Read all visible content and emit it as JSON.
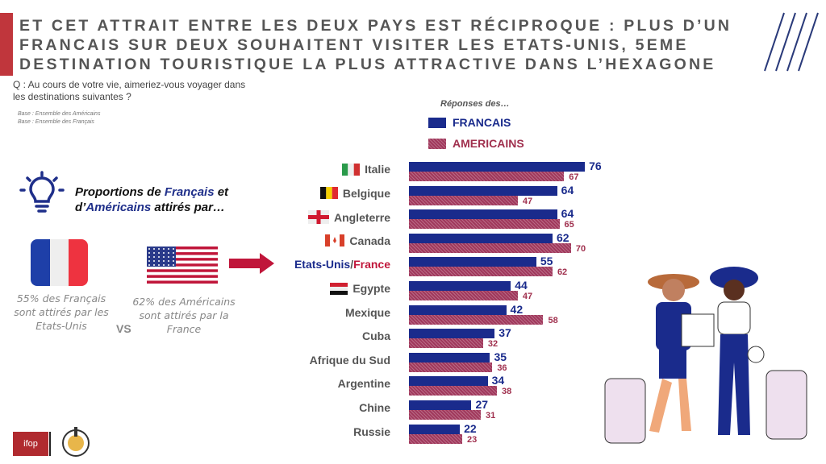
{
  "header": {
    "title": "ET CET ATTRAIT ENTRE LES DEUX PAYS EST RÉCIPROQUE : PLUS D’UN FRANCAIS SUR DEUX SOUHAITENT VISITER LES ETATS-UNIS, 5EME DESTINATION TOURISTIQUE LA PLUS ATTRACTIVE DANS L’HEXAGONE"
  },
  "question": "Q : Au cours de votre vie, aimeriez-vous voyager dans les destinations suivantes ?",
  "bases": [
    "Base : Ensemble des Américains",
    "Base : Ensemble des Français"
  ],
  "callout": {
    "p1": "Proportions de ",
    "fr": "Français",
    "p2": " et",
    "p3": "d’",
    "us": "Américains",
    "p4": " attirés par…"
  },
  "fr_caption": "55% des Français sont attirés par les Etats-Unis",
  "us_caption": "62% des Américains sont attirés par la France",
  "vs": "VS",
  "logos": {
    "ifop": "ifop"
  },
  "colors": {
    "francais": "#1a2b8c",
    "americains": "#a0385c",
    "accent": "#c0363c"
  },
  "chart_data": {
    "type": "bar",
    "orientation": "horizontal",
    "legend_title": "Réponses des…",
    "categories": [
      "Italie",
      "Belgique",
      "Angleterre",
      "Canada",
      "Etats-Unis/France",
      "Egypte",
      "Mexique",
      "Cuba",
      "Afrique du Sud",
      "Argentine",
      "Chine",
      "Russie"
    ],
    "special_label": {
      "fr": "Etats-Unis",
      "sep": "/",
      "us": "France"
    },
    "flags": [
      "italy-flag",
      "belgium-flag",
      "england-flag",
      "canada-flag",
      "",
      "egypt-flag",
      "",
      "",
      "",
      "",
      "",
      ""
    ],
    "series": [
      {
        "name": "FRANCAIS",
        "values": [
          76,
          64,
          64,
          62,
          55,
          44,
          42,
          37,
          35,
          34,
          27,
          22
        ]
      },
      {
        "name": "AMERICAINS",
        "values": [
          67,
          47,
          65,
          70,
          62,
          47,
          58,
          32,
          36,
          38,
          31,
          23
        ]
      }
    ],
    "xlim": [
      0,
      100
    ],
    "legend_position": "top"
  }
}
